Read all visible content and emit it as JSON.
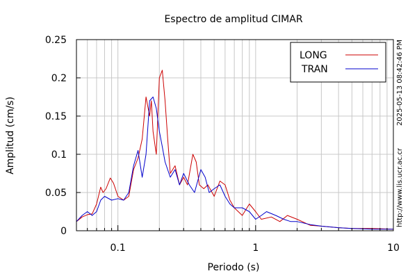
{
  "chart_data": {
    "type": "line",
    "title": "Espectro de amplitud CIMAR",
    "xlabel": "Periodo (s)",
    "ylabel": "Amplitud (cm/s)",
    "xscale": "log",
    "xlim": [
      0.05,
      10
    ],
    "ylim": [
      0,
      0.25
    ],
    "x_tick_labels": [
      "0.1",
      "1",
      "10"
    ],
    "x_tick_values": [
      0.1,
      1,
      10
    ],
    "y_tick_labels": [
      "0",
      "0.05",
      "0.1",
      "0.15",
      "0.2",
      "0.25"
    ],
    "y_tick_values": [
      0,
      0.05,
      0.1,
      0.15,
      0.2,
      0.25
    ],
    "grid": true,
    "legend_position": "top-right",
    "side_text": {
      "timestamp": "2025-05-13 08:42:46 PM",
      "website": "http://www.lis.ucr.ac.cr"
    },
    "series": [
      {
        "name": "LONG",
        "color": "#cc0000",
        "x": [
          0.05,
          0.055,
          0.06,
          0.065,
          0.07,
          0.075,
          0.078,
          0.082,
          0.088,
          0.093,
          0.1,
          0.11,
          0.12,
          0.13,
          0.14,
          0.15,
          0.16,
          0.17,
          0.175,
          0.18,
          0.19,
          0.2,
          0.21,
          0.22,
          0.23,
          0.24,
          0.26,
          0.28,
          0.3,
          0.32,
          0.35,
          0.37,
          0.39,
          0.42,
          0.45,
          0.5,
          0.55,
          0.6,
          0.65,
          0.7,
          0.8,
          0.9,
          1.0,
          1.1,
          1.3,
          1.5,
          1.7,
          2.0,
          2.5,
          3,
          4,
          5,
          7,
          10
        ],
        "values": [
          0.012,
          0.018,
          0.021,
          0.022,
          0.035,
          0.057,
          0.05,
          0.055,
          0.069,
          0.062,
          0.045,
          0.04,
          0.045,
          0.08,
          0.095,
          0.12,
          0.175,
          0.15,
          0.17,
          0.13,
          0.1,
          0.2,
          0.21,
          0.17,
          0.12,
          0.075,
          0.085,
          0.06,
          0.07,
          0.06,
          0.1,
          0.09,
          0.06,
          0.055,
          0.06,
          0.045,
          0.065,
          0.06,
          0.04,
          0.03,
          0.02,
          0.035,
          0.025,
          0.015,
          0.018,
          0.012,
          0.02,
          0.015,
          0.007,
          0.006,
          0.004,
          0.003,
          0.003,
          0.002
        ]
      },
      {
        "name": "TRAN",
        "color": "#0000cc",
        "x": [
          0.05,
          0.055,
          0.06,
          0.065,
          0.07,
          0.075,
          0.08,
          0.09,
          0.1,
          0.11,
          0.12,
          0.13,
          0.14,
          0.15,
          0.16,
          0.17,
          0.18,
          0.19,
          0.2,
          0.21,
          0.22,
          0.24,
          0.26,
          0.28,
          0.3,
          0.33,
          0.36,
          0.4,
          0.43,
          0.46,
          0.5,
          0.55,
          0.6,
          0.65,
          0.7,
          0.8,
          0.9,
          1.0,
          1.1,
          1.2,
          1.4,
          1.6,
          1.8,
          2.0,
          2.5,
          3,
          4,
          5,
          7,
          10
        ],
        "values": [
          0.012,
          0.02,
          0.025,
          0.02,
          0.025,
          0.04,
          0.045,
          0.04,
          0.042,
          0.04,
          0.05,
          0.085,
          0.105,
          0.07,
          0.1,
          0.17,
          0.175,
          0.16,
          0.13,
          0.11,
          0.09,
          0.07,
          0.08,
          0.06,
          0.075,
          0.06,
          0.05,
          0.08,
          0.07,
          0.05,
          0.055,
          0.06,
          0.045,
          0.035,
          0.03,
          0.03,
          0.025,
          0.015,
          0.02,
          0.025,
          0.02,
          0.015,
          0.012,
          0.012,
          0.008,
          0.006,
          0.004,
          0.003,
          0.002,
          0.002
        ]
      }
    ]
  }
}
